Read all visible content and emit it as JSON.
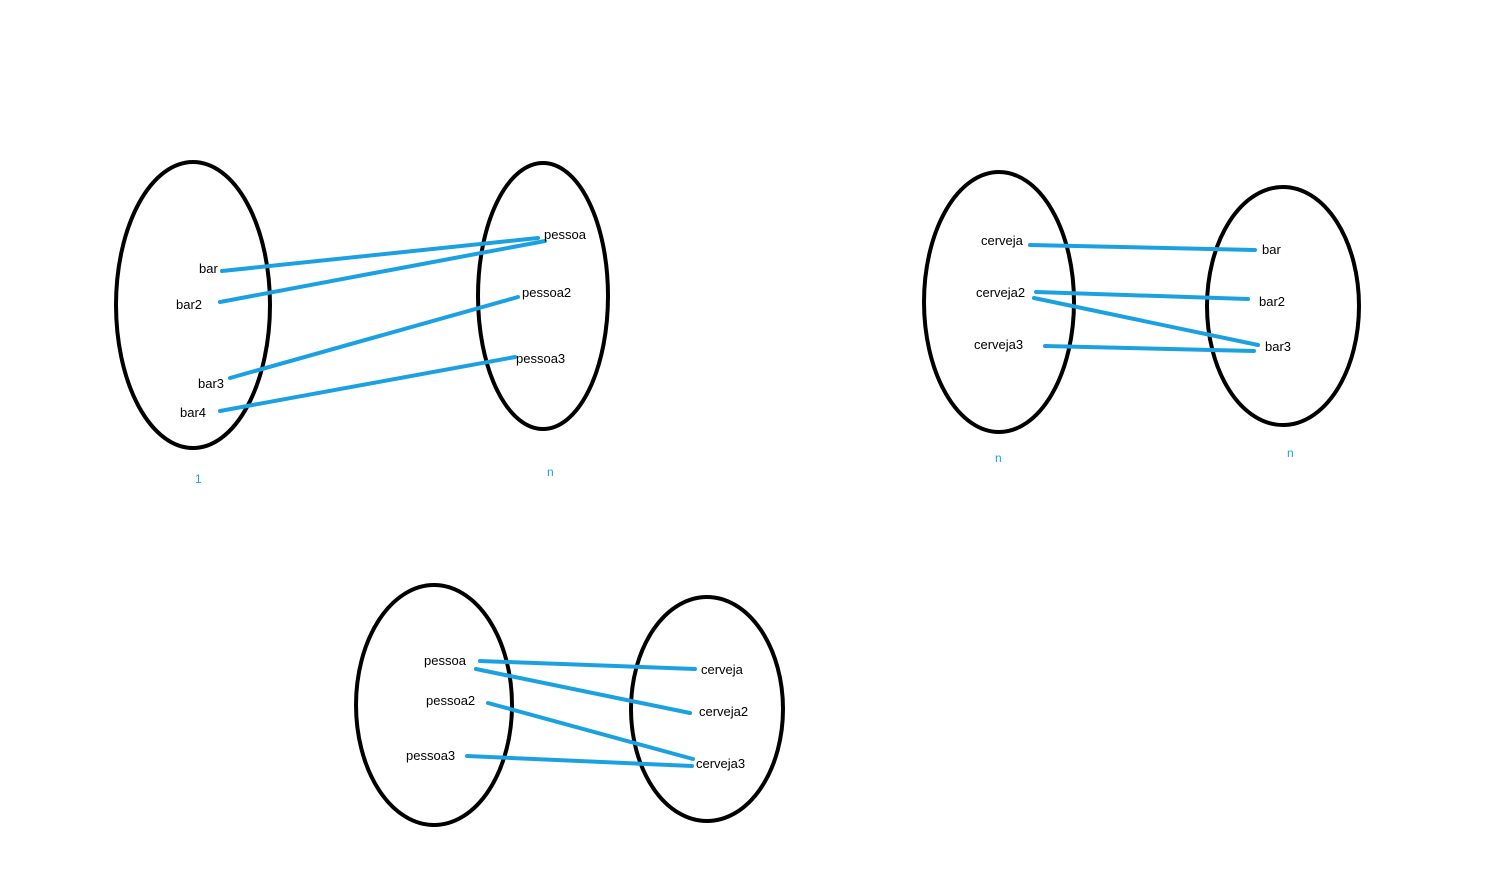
{
  "colors": {
    "outline": "#000000",
    "link": "#1BA1E2",
    "label": "#000000",
    "cardinality": "#1BA1E2"
  },
  "diagrams": [
    {
      "left_set": [
        "bar",
        "bar2",
        "bar3",
        "bar4"
      ],
      "right_set": [
        "pessoa",
        "pessoa2",
        "pessoa3"
      ],
      "links": [
        [
          "bar",
          "pessoa"
        ],
        [
          "bar2",
          "pessoa"
        ],
        [
          "bar3",
          "pessoa2"
        ],
        [
          "bar4",
          "pessoa3"
        ]
      ],
      "left_cardinality": "1",
      "right_cardinality": "n"
    },
    {
      "left_set": [
        "cerveja",
        "cerveja2",
        "cerveja3"
      ],
      "right_set": [
        "bar",
        "bar2",
        "bar3"
      ],
      "links": [
        [
          "cerveja",
          "bar"
        ],
        [
          "cerveja2",
          "bar2"
        ],
        [
          "cerveja2",
          "bar3"
        ],
        [
          "cerveja3",
          "bar3"
        ]
      ],
      "left_cardinality": "n",
      "right_cardinality": "n"
    },
    {
      "left_set": [
        "pessoa",
        "pessoa2",
        "pessoa3"
      ],
      "right_set": [
        "cerveja",
        "cerveja2",
        "cerveja3"
      ],
      "links": [
        [
          "pessoa",
          "cerveja"
        ],
        [
          "pessoa",
          "cerveja2"
        ],
        [
          "pessoa2",
          "cerveja3"
        ],
        [
          "pessoa3",
          "cerveja3"
        ]
      ]
    }
  ]
}
